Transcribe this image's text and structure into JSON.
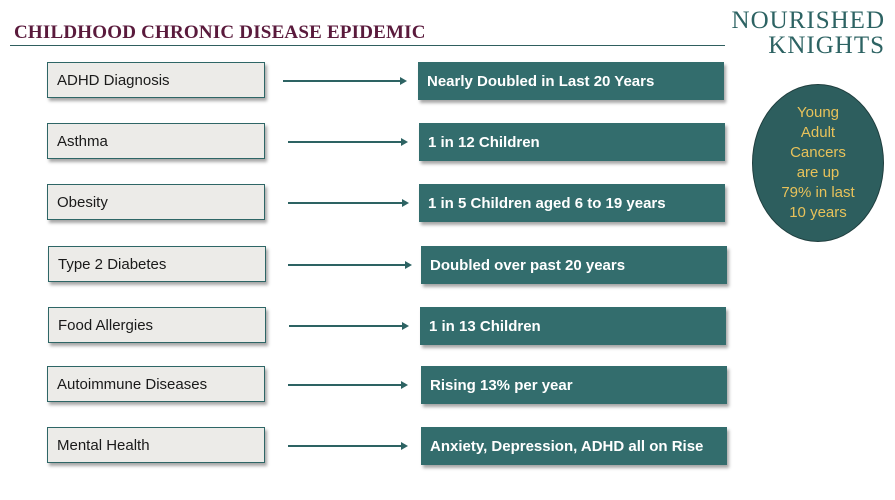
{
  "header": {
    "title": "CHILDHOOD CHRONIC DISEASE EPIDEMIC",
    "brand_lines": [
      "NOURISHED",
      "KNIGHTS"
    ]
  },
  "rows": [
    {
      "condition": "ADHD Diagnosis",
      "stat": "Nearly Doubled in Last 20 Years"
    },
    {
      "condition": "Asthma",
      "stat": "1 in 12 Children"
    },
    {
      "condition": "Obesity",
      "stat": "1 in 5 Children aged 6 to 19 years"
    },
    {
      "condition": "Type 2 Diabetes",
      "stat": "Doubled over past 20 years"
    },
    {
      "condition": "Food Allergies",
      "stat": "1 in 13 Children"
    },
    {
      "condition": "Autoimmune Diseases",
      "stat": "Rising 13% per year"
    },
    {
      "condition": "Mental Health",
      "stat": "Anxiety, Depression, ADHD all on Rise"
    }
  ],
  "callout": {
    "lines": [
      "Young",
      "Adult",
      "Cancers",
      "are up",
      "79% in last",
      "10 years"
    ]
  },
  "colors": {
    "title": "#5a1a3c",
    "teal": "#336d6d",
    "callout_text": "#e8c25a",
    "left_box_bg": "#ecebe8"
  }
}
